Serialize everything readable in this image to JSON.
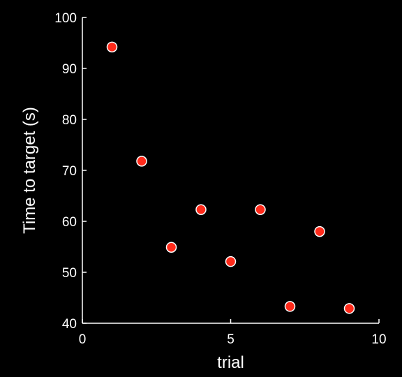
{
  "chart_data": {
    "type": "scatter",
    "title": "",
    "xlabel": "trial",
    "ylabel": "Time to target (s)",
    "xlim": [
      0,
      10
    ],
    "ylim": [
      40,
      100
    ],
    "xticks": [
      0,
      5,
      10
    ],
    "yticks": [
      40,
      50,
      60,
      70,
      80,
      90,
      100
    ],
    "xtick_labels": [
      "0",
      "5",
      "10"
    ],
    "ytick_labels": [
      "40",
      "50",
      "60",
      "70",
      "80",
      "90",
      "100"
    ],
    "grid": false,
    "series": [
      {
        "marker_color": "#ff2a1a",
        "marker_edge_color": "#ffffff",
        "points": [
          {
            "x": 1,
            "y": 94.2
          },
          {
            "x": 2,
            "y": 71.8
          },
          {
            "x": 3,
            "y": 54.9
          },
          {
            "x": 4,
            "y": 62.3
          },
          {
            "x": 5,
            "y": 52.1
          },
          {
            "x": 6,
            "y": 62.3
          },
          {
            "x": 7,
            "y": 43.3
          },
          {
            "x": 8,
            "y": 58.0
          },
          {
            "x": 9,
            "y": 42.9
          }
        ]
      }
    ],
    "colors": {
      "background": "#000000",
      "axes": "#ffffff",
      "text": "#ffffff"
    }
  }
}
